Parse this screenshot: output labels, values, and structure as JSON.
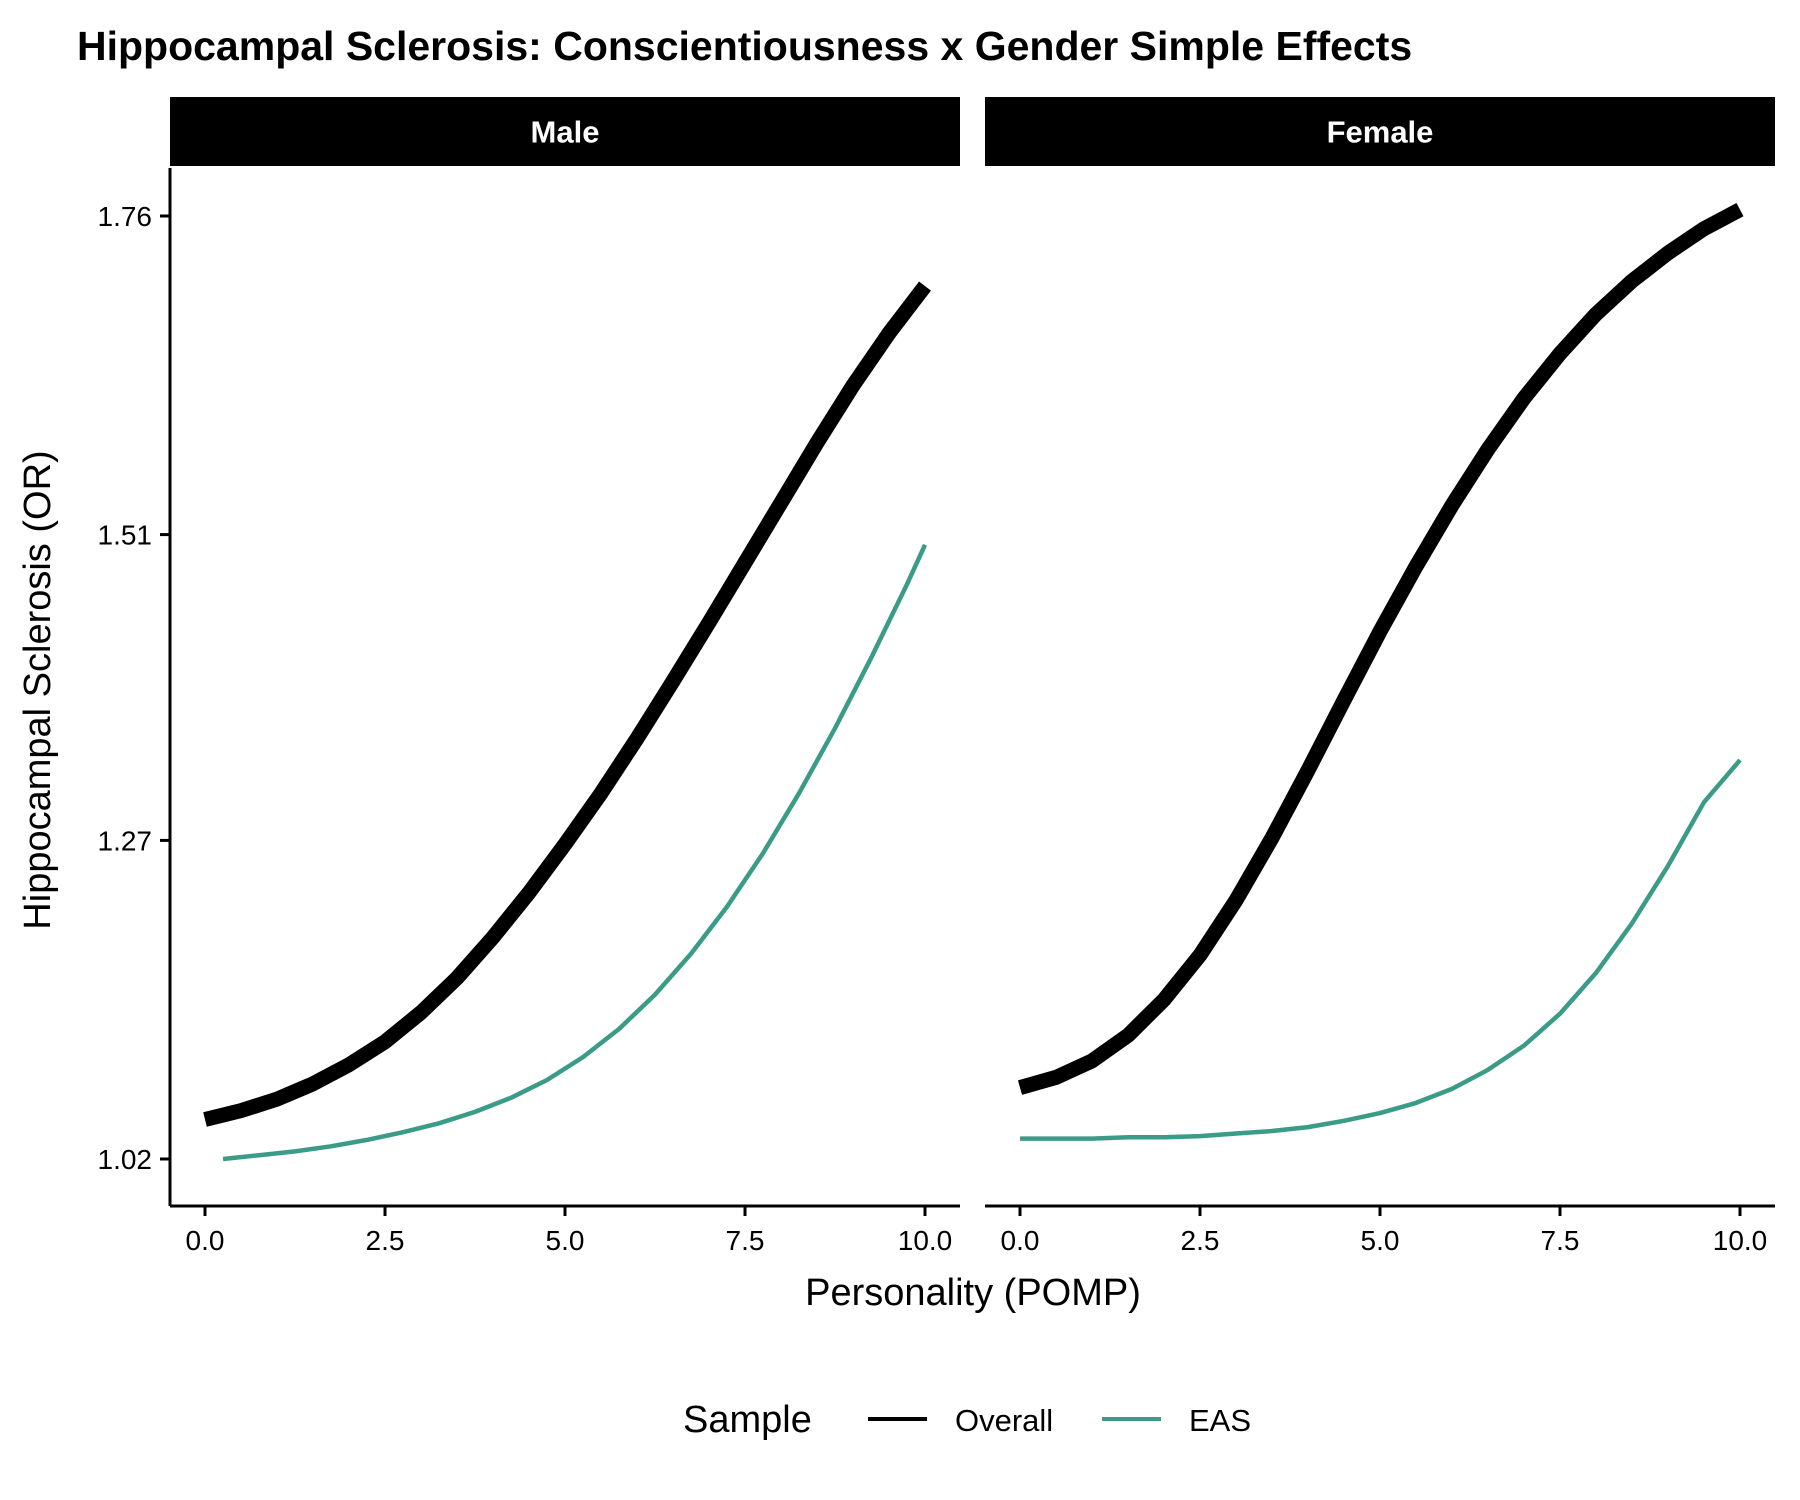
{
  "chart_data": {
    "type": "line",
    "title": "Hippocampal Sclerosis: Conscientiousness x Gender Simple Effects",
    "xlabel": "Personality (POMP)",
    "ylabel": "Hippocampal Sclerosis (OR)",
    "xlim": [
      -0.5,
      10.5
    ],
    "ylim": [
      0.98,
      1.8
    ],
    "x_ticks": [
      0,
      2.5,
      5,
      7.5,
      10
    ],
    "x_tick_labels": [
      "0.0",
      "2.5",
      "5.0",
      "7.5",
      "10.0"
    ],
    "y_ticks": [
      1.02,
      1.27,
      1.51,
      1.76
    ],
    "y_tick_labels": [
      "1.02",
      "1.27",
      "1.51",
      "1.76"
    ],
    "grid": false,
    "legend": {
      "title": "Sample",
      "position": "bottom",
      "entries": [
        "Overall",
        "EAS"
      ]
    },
    "colors": {
      "Overall": "#000000",
      "EAS": "#3a9c86"
    },
    "panels": [
      {
        "label": "Male",
        "series": [
          {
            "name": "Overall",
            "x": [
              0,
              0.5,
              1,
              1.5,
              2,
              2.5,
              3,
              3.5,
              4,
              4.5,
              5,
              5.5,
              6,
              6.5,
              7,
              7.5,
              8,
              8.5,
              9,
              9.5,
              10
            ],
            "y": [
              1.051,
              1.058,
              1.067,
              1.079,
              1.094,
              1.112,
              1.135,
              1.162,
              1.194,
              1.229,
              1.267,
              1.307,
              1.35,
              1.395,
              1.441,
              1.488,
              1.535,
              1.582,
              1.627,
              1.668,
              1.705
            ]
          },
          {
            "name": "EAS",
            "x": [
              0.25,
              0.75,
              1.25,
              1.75,
              2.25,
              2.75,
              3.25,
              3.75,
              4.25,
              4.75,
              5.25,
              5.75,
              6.25,
              6.75,
              7.25,
              7.75,
              8.25,
              8.75,
              9.25,
              9.75,
              10
            ],
            "y": [
              1.02,
              1.023,
              1.026,
              1.03,
              1.035,
              1.041,
              1.048,
              1.057,
              1.068,
              1.082,
              1.1,
              1.122,
              1.149,
              1.181,
              1.218,
              1.26,
              1.307,
              1.358,
              1.413,
              1.471,
              1.502
            ]
          }
        ]
      },
      {
        "label": "Female",
        "series": [
          {
            "name": "Overall",
            "x": [
              0,
              0.5,
              1,
              1.5,
              2,
              2.5,
              3,
              3.5,
              4,
              4.5,
              5,
              5.5,
              6,
              6.5,
              7,
              7.5,
              8,
              8.5,
              9,
              9.5,
              10
            ],
            "y": [
              1.076,
              1.084,
              1.097,
              1.117,
              1.145,
              1.18,
              1.223,
              1.272,
              1.325,
              1.38,
              1.434,
              1.485,
              1.533,
              1.577,
              1.617,
              1.652,
              1.683,
              1.709,
              1.731,
              1.75,
              1.765
            ]
          },
          {
            "name": "EAS",
            "x": [
              0,
              0.5,
              1,
              1.5,
              2,
              2.5,
              3,
              3.5,
              4,
              4.5,
              5,
              5.5,
              6,
              6.5,
              7,
              7.5,
              8,
              8.5,
              9,
              9.5,
              10
            ],
            "y": [
              1.036,
              1.036,
              1.036,
              1.037,
              1.037,
              1.038,
              1.04,
              1.042,
              1.045,
              1.05,
              1.056,
              1.064,
              1.075,
              1.09,
              1.109,
              1.134,
              1.166,
              1.205,
              1.25,
              1.3,
              1.333
            ]
          }
        ]
      }
    ]
  }
}
